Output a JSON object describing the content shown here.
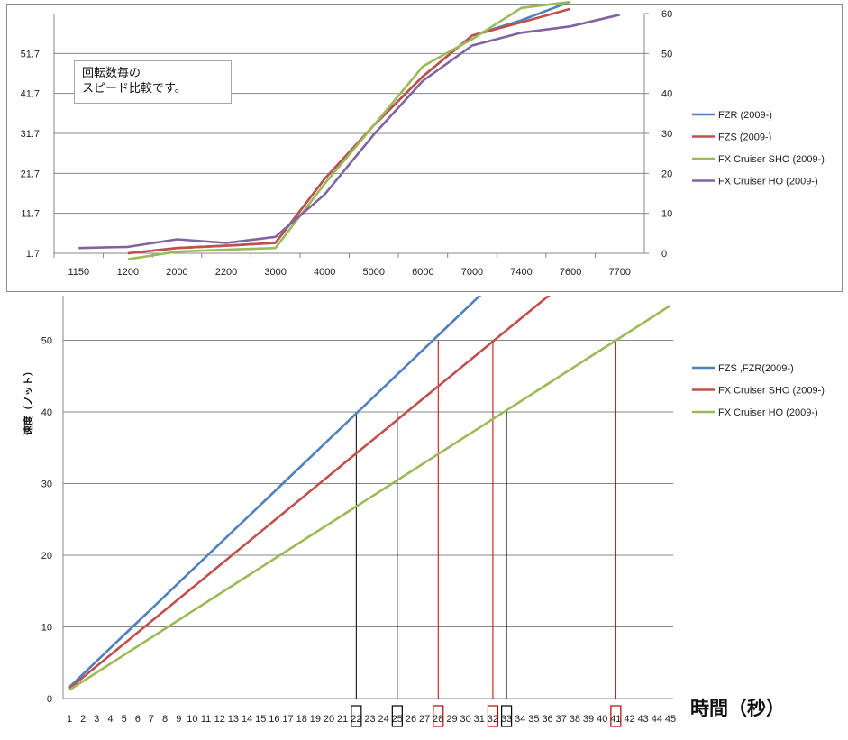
{
  "chart_data": [
    {
      "type": "line",
      "title": "",
      "annotation": [
        "回転数毎の",
        "スピード比較です。"
      ],
      "categories": [
        "1150",
        "1200",
        "2000",
        "2200",
        "3000",
        "4000",
        "5000",
        "6000",
        "7000",
        "7400",
        "7600",
        "7700"
      ],
      "y_left_ticks": [
        "1.7",
        "11.7",
        "21.7",
        "31.7",
        "41.7",
        "51.7"
      ],
      "y_left_range": [
        1.7,
        61.7
      ],
      "y_right_ticks": [
        "0",
        "10",
        "20",
        "30",
        "40",
        "50",
        "60"
      ],
      "y_right_range": [
        0,
        60
      ],
      "grid": true,
      "legend_position": "right",
      "series": [
        {
          "name": "FZR (2009-)",
          "color": "#4f81bd",
          "values": [
            null,
            1.7,
            3.0,
            3.6,
            4.3,
            20.3,
            33.7,
            46.0,
            56.2,
            60.0,
            64.7,
            null
          ]
        },
        {
          "name": "FZS (2009-)",
          "color": "#c0504d",
          "values": [
            null,
            1.7,
            3.0,
            3.6,
            4.3,
            20.3,
            33.7,
            46.0,
            56.2,
            59.5,
            62.9,
            null
          ]
        },
        {
          "name": "FX Cruiser SHO (2009-)",
          "color": "#9bbb59",
          "values": [
            null,
            0.2,
            2.1,
            2.6,
            3.0,
            19.1,
            33.7,
            48.5,
            55.3,
            63.1,
            64.6,
            null
          ]
        },
        {
          "name": "FX Cruiser HO (2009-)",
          "color": "#8064a2",
          "values": [
            3.0,
            3.3,
            5.2,
            4.3,
            5.8,
            16.4,
            31.4,
            44.9,
            53.7,
            56.9,
            58.5,
            61.4
          ]
        }
      ]
    },
    {
      "type": "line",
      "title": "",
      "xlabel": "時間（秒）",
      "ylabel": "速度（ノット）",
      "x": [
        "1",
        "2",
        "3",
        "4",
        "5",
        "6",
        "7",
        "8",
        "9",
        "10",
        "11",
        "12",
        "13",
        "14",
        "15",
        "16",
        "17",
        "18",
        "19",
        "20",
        "21",
        "22",
        "23",
        "24",
        "25",
        "26",
        "27",
        "28",
        "29",
        "30",
        "31",
        "32",
        "33",
        "34",
        "35",
        "36",
        "37",
        "38",
        "39",
        "40",
        "41",
        "42",
        "43",
        "44",
        "45"
      ],
      "y_ticks": [
        "0",
        "10",
        "20",
        "30",
        "40",
        "50"
      ],
      "ylim": [
        0,
        55
      ],
      "grid": true,
      "legend_position": "right",
      "series": [
        {
          "name": "FZS ,FZR(2009-)",
          "color": "#4f81bd",
          "slope": 1.8182,
          "start": 1.6
        },
        {
          "name": "FX Cruiser SHO (2009-)",
          "color": "#c0504d",
          "slope": 1.5625,
          "start": 1.4
        },
        {
          "name": "FX Cruiser HO (2009-)",
          "color": "#9bbb59",
          "slope": 1.2195,
          "start": 1.2
        }
      ],
      "markers": [
        {
          "x": "22",
          "y": 40,
          "color": "#000000"
        },
        {
          "x": "25",
          "y": 40,
          "color": "#000000"
        },
        {
          "x": "28",
          "y": 50,
          "color": "#c00000"
        },
        {
          "x": "32",
          "y": 50,
          "color": "#c00000"
        },
        {
          "x": "33",
          "y": 40,
          "color": "#000000"
        },
        {
          "x": "41",
          "y": 50,
          "color": "#c00000"
        }
      ]
    }
  ]
}
